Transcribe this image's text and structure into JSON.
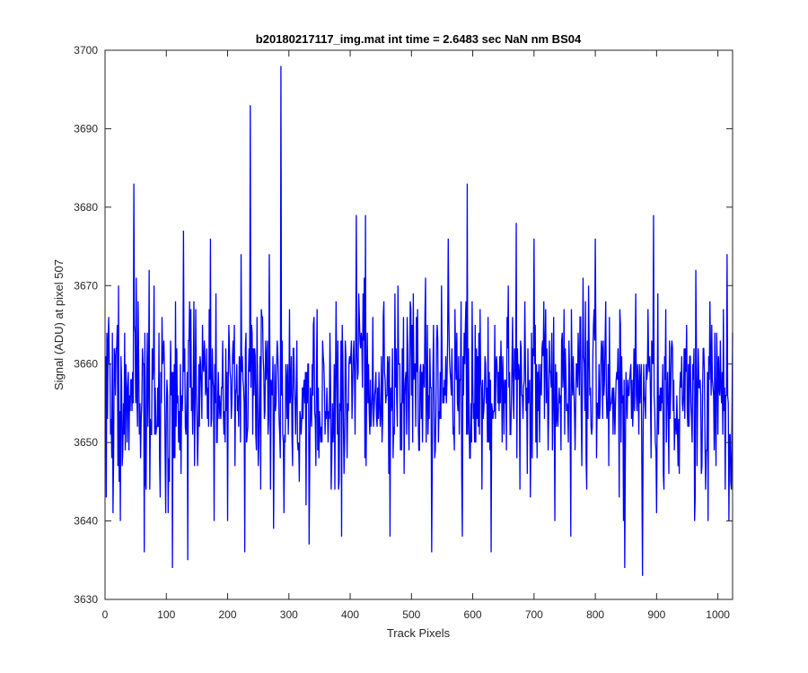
{
  "chart_data": {
    "type": "line",
    "title": "b20180217117_img.mat int time = 2.6483 sec  NaN nm BS04",
    "xlabel": "Track Pixels",
    "ylabel": "Signal (ADU) at pixel 507",
    "xlim": [
      0,
      1024
    ],
    "ylim": [
      3630,
      3700
    ],
    "x_ticks": [
      0,
      100,
      200,
      300,
      400,
      500,
      600,
      700,
      800,
      900,
      1000
    ],
    "y_ticks": [
      3630,
      3640,
      3650,
      3660,
      3670,
      3680,
      3690,
      3700
    ],
    "grid": false,
    "box": true,
    "series": [
      {
        "color": "#0000ff",
        "x_start": 1,
        "x_step": 1,
        "noise_mean": 3657,
        "noise_spread": 6,
        "noise_min": 3636,
        "noise_max": 3677,
        "spikes": [
          {
            "x": 5,
            "y": 3663
          },
          {
            "x": 13,
            "y": 3641
          },
          {
            "x": 25,
            "y": 3640
          },
          {
            "x": 47,
            "y": 3683
          },
          {
            "x": 64,
            "y": 3636
          },
          {
            "x": 72,
            "y": 3672
          },
          {
            "x": 90,
            "y": 3643
          },
          {
            "x": 110,
            "y": 3634
          },
          {
            "x": 128,
            "y": 3677
          },
          {
            "x": 135,
            "y": 3635
          },
          {
            "x": 172,
            "y": 3676
          },
          {
            "x": 178,
            "y": 3640
          },
          {
            "x": 228,
            "y": 3636
          },
          {
            "x": 237,
            "y": 3693
          },
          {
            "x": 250,
            "y": 3647
          },
          {
            "x": 275,
            "y": 3639
          },
          {
            "x": 287,
            "y": 3698
          },
          {
            "x": 333,
            "y": 3637
          },
          {
            "x": 386,
            "y": 3638
          },
          {
            "x": 410,
            "y": 3679
          },
          {
            "x": 425,
            "y": 3679
          },
          {
            "x": 465,
            "y": 3638
          },
          {
            "x": 533,
            "y": 3636
          },
          {
            "x": 560,
            "y": 3676
          },
          {
            "x": 583,
            "y": 3638
          },
          {
            "x": 591,
            "y": 3683
          },
          {
            "x": 630,
            "y": 3636
          },
          {
            "x": 671,
            "y": 3678
          },
          {
            "x": 700,
            "y": 3676
          },
          {
            "x": 760,
            "y": 3638
          },
          {
            "x": 800,
            "y": 3676
          },
          {
            "x": 848,
            "y": 3634
          },
          {
            "x": 877,
            "y": 3633
          },
          {
            "x": 895,
            "y": 3679
          },
          {
            "x": 962,
            "y": 3640
          },
          {
            "x": 1015,
            "y": 3674
          },
          {
            "x": 1018,
            "y": 3640
          },
          {
            "x": 1022,
            "y": 3644
          }
        ]
      }
    ]
  }
}
